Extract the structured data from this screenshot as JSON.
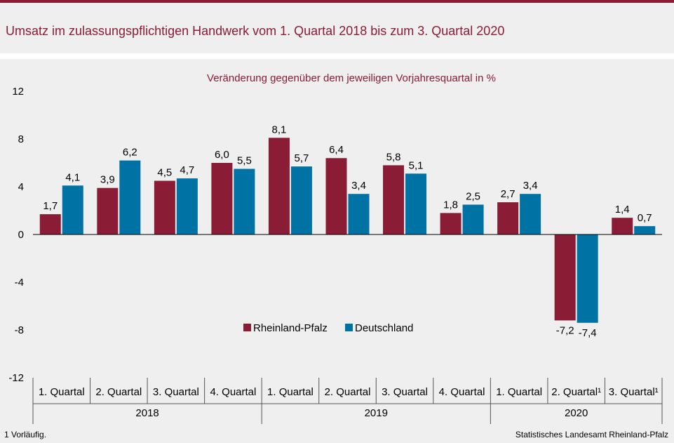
{
  "title": "Umsatz im zulassungspflichtigen Handwerk vom 1. Quartal 2018 bis zum 3. Quartal 2020",
  "footnote": "1 Vorläufig.",
  "source": "Statistisches Landesamt Rheinland-Pfalz",
  "colors": {
    "brand": "#8a1c35",
    "rlp": "#8a1c35",
    "de": "#0072a3",
    "panel": "#efefef"
  },
  "chart_data": {
    "type": "bar",
    "subtitle": "Veränderung gegenüber dem jeweiligen Vorjahresquartal in %",
    "categories": [
      "1. Quartal",
      "2. Quartal",
      "3. Quartal",
      "4. Quartal",
      "1. Quartal",
      "2. Quartal",
      "3. Quartal",
      "4. Quartal",
      "1. Quartal",
      "2. Quartal¹",
      "3. Quartal¹"
    ],
    "years": [
      {
        "label": "2018",
        "span": 4
      },
      {
        "label": "2019",
        "span": 4
      },
      {
        "label": "2020",
        "span": 3
      }
    ],
    "series": [
      {
        "name": "Rheinland-Pfalz",
        "color": "#8a1c35",
        "values": [
          1.7,
          3.9,
          4.5,
          6.0,
          8.1,
          6.4,
          5.8,
          1.8,
          2.7,
          -7.2,
          1.4
        ],
        "labels": [
          "1,7",
          "3,9",
          "4,5",
          "6,0",
          "8,1",
          "6,4",
          "5,8",
          "1,8",
          "2,7",
          "-7,2",
          "1,4"
        ]
      },
      {
        "name": "Deutschland",
        "color": "#0072a3",
        "values": [
          4.1,
          6.2,
          4.7,
          5.5,
          5.7,
          3.4,
          5.1,
          2.5,
          3.4,
          -7.4,
          0.7
        ],
        "labels": [
          "4,1",
          "6,2",
          "4,7",
          "5,5",
          "5,7",
          "3,4",
          "5,1",
          "2,5",
          "3,4",
          "-7,4",
          "0,7"
        ]
      }
    ],
    "yticks": [
      12,
      8,
      4,
      0,
      -4,
      -8,
      -12
    ],
    "ylim": [
      -12,
      12
    ],
    "legend": "center",
    "grid": false
  }
}
